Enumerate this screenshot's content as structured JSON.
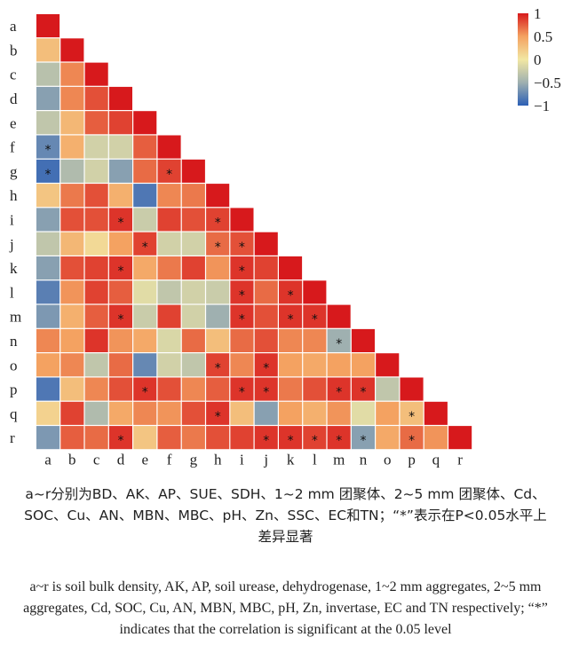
{
  "chart_data": {
    "type": "heatmap",
    "labels": [
      "a",
      "b",
      "c",
      "d",
      "e",
      "f",
      "g",
      "h",
      "i",
      "j",
      "k",
      "l",
      "m",
      "n",
      "o",
      "p",
      "q",
      "r"
    ],
    "matrix": [
      [
        1
      ],
      [
        0.3,
        1
      ],
      [
        -0.35,
        0.6,
        1
      ],
      [
        -0.6,
        0.6,
        0.8,
        1
      ],
      [
        -0.3,
        0.35,
        0.75,
        0.85,
        1
      ],
      [
        -0.75,
        0.4,
        -0.2,
        -0.2,
        0.75,
        1
      ],
      [
        -0.9,
        -0.4,
        -0.2,
        -0.6,
        0.7,
        0.85,
        1
      ],
      [
        0.25,
        0.65,
        0.8,
        0.4,
        -0.85,
        0.6,
        0.65,
        1
      ],
      [
        -0.6,
        0.8,
        0.8,
        0.9,
        -0.25,
        0.85,
        0.8,
        0.85,
        1
      ],
      [
        -0.3,
        0.35,
        0.1,
        0.5,
        0.85,
        -0.2,
        -0.2,
        0.7,
        0.8,
        1
      ],
      [
        -0.6,
        0.8,
        0.85,
        0.9,
        0.45,
        0.65,
        0.85,
        0.55,
        0.9,
        0.85,
        1
      ],
      [
        -0.8,
        0.55,
        0.85,
        0.75,
        -0.1,
        -0.3,
        -0.2,
        -0.25,
        0.9,
        0.7,
        0.9,
        1
      ],
      [
        -0.65,
        0.4,
        0.75,
        0.9,
        -0.25,
        0.85,
        -0.2,
        -0.5,
        0.9,
        0.8,
        0.9,
        0.9,
        1
      ],
      [
        0.6,
        0.5,
        0.9,
        0.55,
        0.45,
        -0.15,
        0.7,
        0.3,
        0.7,
        0.8,
        0.6,
        0.6,
        -0.5,
        1
      ],
      [
        0.5,
        0.6,
        -0.3,
        0.7,
        -0.75,
        -0.2,
        -0.3,
        0.85,
        0.6,
        0.9,
        0.5,
        0.45,
        0.5,
        0.5,
        1
      ],
      [
        -0.85,
        0.3,
        0.6,
        0.8,
        0.9,
        0.8,
        0.6,
        0.75,
        0.9,
        0.9,
        0.65,
        0.8,
        0.9,
        0.9,
        -0.3,
        1
      ],
      [
        0.15,
        0.85,
        -0.4,
        0.45,
        0.6,
        0.55,
        0.8,
        0.9,
        0.3,
        -0.6,
        0.5,
        0.4,
        0.55,
        -0.1,
        0.5,
        0.3,
        1
      ],
      [
        -0.65,
        0.75,
        0.7,
        0.9,
        0.25,
        0.75,
        0.65,
        0.8,
        0.85,
        0.9,
        0.9,
        0.85,
        0.9,
        -0.6,
        0.45,
        0.7,
        0.55,
        1
      ]
    ],
    "significant": [
      [
        5,
        0
      ],
      [
        6,
        0
      ],
      [
        6,
        5
      ],
      [
        8,
        3
      ],
      [
        8,
        7
      ],
      [
        9,
        4
      ],
      [
        9,
        7
      ],
      [
        9,
        8
      ],
      [
        10,
        3
      ],
      [
        10,
        8
      ],
      [
        11,
        8
      ],
      [
        11,
        10
      ],
      [
        12,
        3
      ],
      [
        12,
        8
      ],
      [
        12,
        10
      ],
      [
        12,
        11
      ],
      [
        13,
        12
      ],
      [
        14,
        7
      ],
      [
        14,
        9
      ],
      [
        15,
        4
      ],
      [
        15,
        8
      ],
      [
        15,
        9
      ],
      [
        15,
        12
      ],
      [
        15,
        13
      ],
      [
        16,
        7
      ],
      [
        16,
        15
      ],
      [
        17,
        3
      ],
      [
        17,
        9
      ],
      [
        17,
        10
      ],
      [
        17,
        11
      ],
      [
        17,
        12
      ],
      [
        17,
        13
      ],
      [
        17,
        15
      ]
    ],
    "legend": {
      "ticks": [
        {
          "value": 1,
          "label": "1"
        },
        {
          "value": 0.5,
          "label": "0.5"
        },
        {
          "value": 0,
          "label": "0"
        },
        {
          "value": -0.5,
          "label": "−0.5"
        },
        {
          "value": -1,
          "label": "−1"
        }
      ],
      "placement": "top-right"
    },
    "star_symbol": "*",
    "colors": {
      "high": "#d7191c",
      "mid_high": "#f4a261",
      "zero": "#f2e7a3",
      "mid_low": "#9fb0b0",
      "low": "#2c5fb5"
    },
    "grid": false
  },
  "caption": {
    "chinese": "a~r分别为BD、AK、AP、SUE、SDH、1~2 mm 团聚体、2~5 mm 团聚体、Cd、SOC、Cu、AN、MBN、MBC、pH、Zn、SSC、EC和TN；“*”表示在P<0.05水平上差异显著",
    "english": "a~r is soil bulk density, AK, AP, soil urease, dehydrogenase, 1~2 mm aggregates, 2~5 mm aggregates, Cd, SOC, Cu, AN, MBN, MBC, pH, Zn, invertase, EC and TN respectively; “*” indicates that the correlation is significant at the 0.05 level"
  }
}
